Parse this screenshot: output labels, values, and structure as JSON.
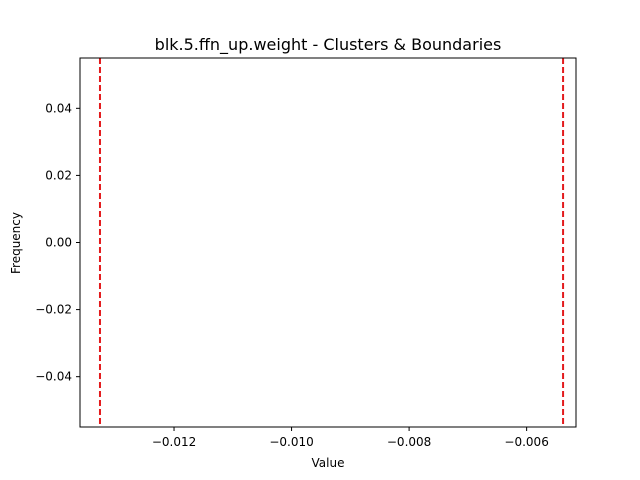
{
  "chart_data": {
    "type": "line",
    "title": "blk.5.ffn_up.weight - Clusters & Boundaries",
    "xlabel": "Value",
    "ylabel": "Frequency",
    "xlim": [
      -0.0136,
      -0.00516
    ],
    "ylim": [
      -0.055,
      0.055
    ],
    "xticks": [
      -0.012,
      -0.01,
      -0.008,
      -0.006
    ],
    "xtick_labels": [
      "−0.012",
      "−0.010",
      "−0.008",
      "−0.006"
    ],
    "yticks": [
      0.04,
      0.02,
      0.0,
      -0.02,
      -0.04
    ],
    "ytick_labels": [
      "0.04",
      "0.02",
      "0.00",
      "−0.02",
      "−0.04"
    ],
    "boundaries": [
      -0.01326,
      -0.00538
    ],
    "boundary_color": "#e31a1c",
    "boundary_style": "dashed",
    "grid": false
  }
}
